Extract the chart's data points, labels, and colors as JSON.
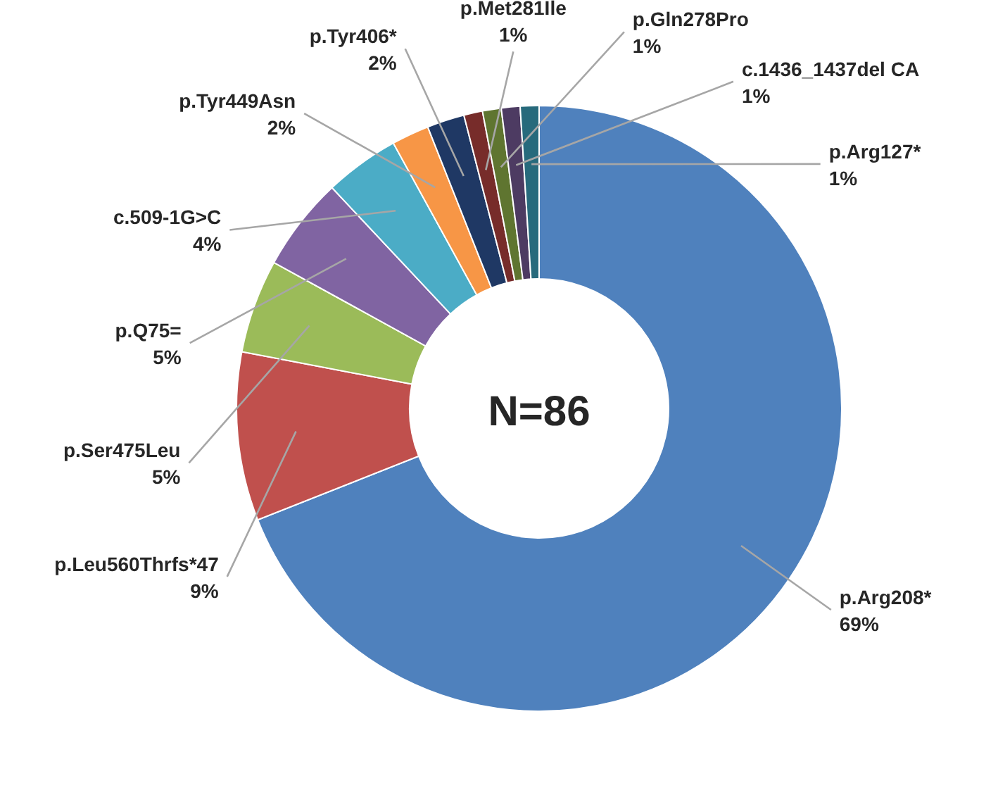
{
  "chart_data": {
    "type": "donut",
    "categories": [
      "p.Arg208*",
      "p.Leu560Thrfs*47",
      "p.Ser475Leu",
      "p.Q75=",
      "c.509-1G>C",
      "p.Tyr449Asn",
      "p.Tyr406*",
      "p.Met281Ile",
      "p.Gln278Pro",
      "c.1436_1437del CA",
      "p.Arg127*"
    ],
    "values": [
      69,
      9,
      5,
      5,
      4,
      2,
      2,
      1,
      1,
      1,
      1
    ],
    "colors": [
      "#4f81bd",
      "#c0504d",
      "#9bbb59",
      "#8064a2",
      "#4bacc6",
      "#f79646",
      "#1f3864",
      "#772c2a",
      "#5f7530",
      "#4d3b62",
      "#276a7c"
    ],
    "value_labels": [
      "69%",
      "9%",
      "5%",
      "5%",
      "4%",
      "2%",
      "2%",
      "1%",
      "1%",
      "1%",
      "1%"
    ],
    "annotations": [
      "N=86"
    ]
  }
}
